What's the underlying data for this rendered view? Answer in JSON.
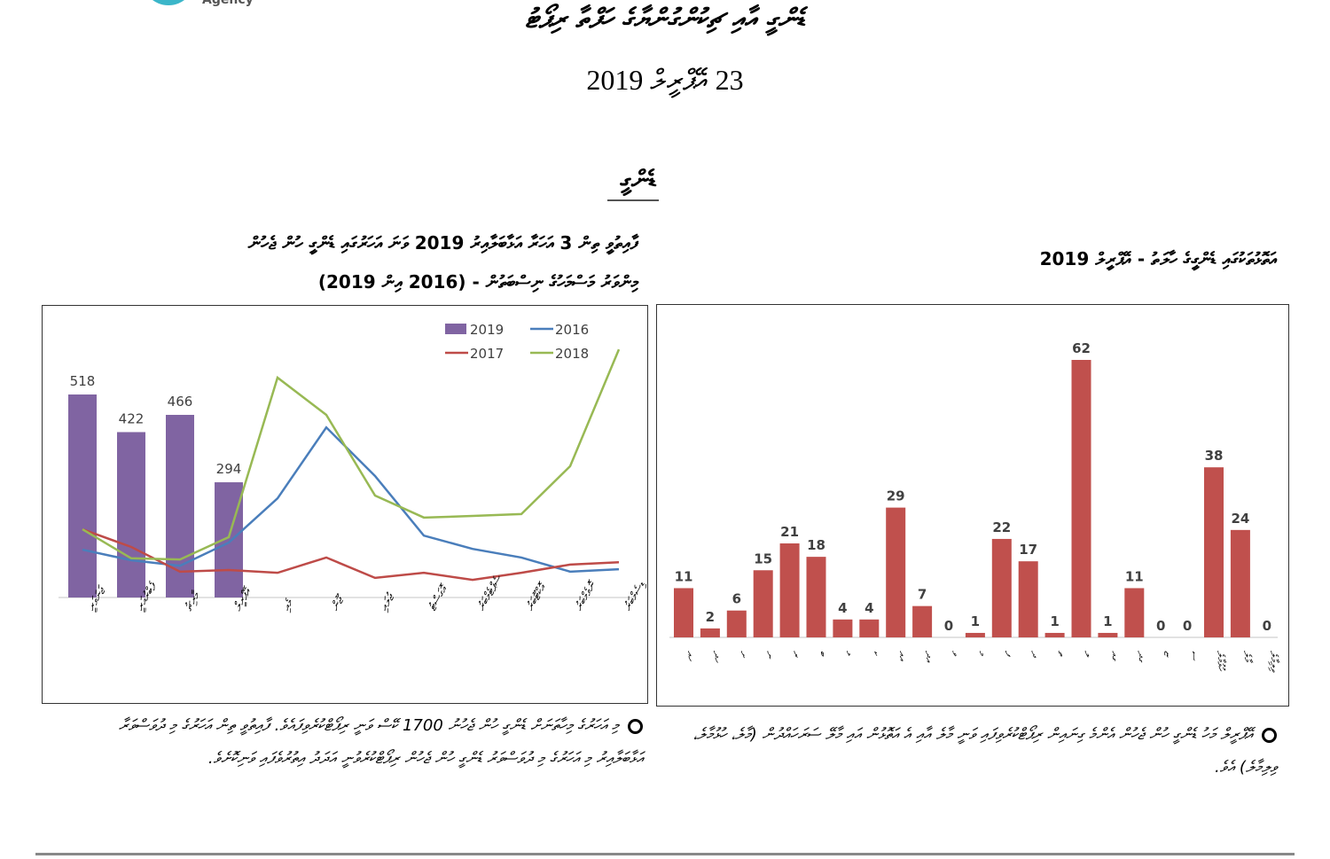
{
  "header": {
    "logo_text": "Agency",
    "title": "ޑެންގީ އާއި ޗިކުންގުންޔާގެ ހަފްތާ ރިޕޯޓު",
    "date": "23 އޭޕްރީލް 2019",
    "section_heading": "ޑެންގީ"
  },
  "chart_data": [
    {
      "type": "bar+line",
      "title_line1": "ފާއިތުވީ ތިން 3 އަހަރާ އަޅާބަލާއިރު 2019 ވަނަ އަހަރުގައި ޑެންގީ ހުން ޖެހުން",
      "title_line2": "މިންވަރު މަސްމަހުގެ ނިސްބަތުން - (2016 އިން 2019)",
      "categories": [
        "ޖަނަވަރީ",
        "ފެބްރުއަރީ",
        "މާރިޗު",
        "އޭޕްރީލް",
        "މެއި",
        "ޖޫން",
        "ޖުލައި",
        "އޮގަސްޓު",
        "ސެޕްޓެމްބަރު",
        "އޮކްޓޫބަރު",
        "ނޮވެމްބަރު",
        "ޑިސެމްބަރު"
      ],
      "ylim": [
        0,
        600
      ],
      "grid": false,
      "legend_position": "top-right",
      "series": [
        {
          "name": "2019",
          "kind": "bar",
          "color": "#8064a2",
          "values": [
            518,
            422,
            466,
            294,
            null,
            null,
            null,
            null,
            null,
            null,
            null,
            null
          ],
          "data_labels": true
        },
        {
          "name": "2016",
          "kind": "line",
          "color": "#4a7ebb",
          "values": [
            122,
            95,
            81,
            140,
            253,
            434,
            310,
            158,
            124,
            102,
            66,
            72
          ]
        },
        {
          "name": "2017",
          "kind": "line",
          "color": "#be4b48",
          "values": [
            174,
            129,
            66,
            70,
            63,
            102,
            50,
            63,
            45,
            63,
            84,
            90
          ]
        },
        {
          "name": "2018",
          "kind": "line",
          "color": "#98b954",
          "values": [
            174,
            100,
            97,
            154,
            561,
            466,
            260,
            204,
            208,
            213,
            335,
            633
          ]
        }
      ]
    },
    {
      "type": "bar",
      "title": "އަތޮޅުތަކުގައި ޑެންގީގެ ހާލަތު - އޭޕްރީލް 2019",
      "categories": [
        "ހއ",
        "ހދ",
        "ށ",
        "ނ",
        "ރ",
        "ބ",
        "ޅ",
        "ކ",
        "އއ",
        "އދ",
        "ވ",
        "މ",
        "ފ",
        "ދ",
        "ތ",
        "ލ",
        "ގއ",
        "ގދ",
        "ޏ",
        "ސ",
        "ހުޅުމާލެ",
        "މާލެ",
        "ވިލިމާލެ"
      ],
      "values": [
        11,
        2,
        6,
        15,
        21,
        18,
        4,
        4,
        29,
        7,
        0,
        1,
        22,
        17,
        1,
        62,
        1,
        11,
        0,
        0,
        38,
        24,
        0
      ],
      "color": "#c0504d",
      "ylim": [
        0,
        65
      ],
      "grid": false,
      "data_labels": true
    }
  ],
  "notes": {
    "left": "މި އަހަރުގެ މިހާތަނަށް ޑެންގީ ހުން ޖެހުނު 1700 ކޭސް ވަނީ ރިޕޯޓްކުރެވިފައެވެ. ފާއިތުވީ ތިން އަހަރުގެ މި ދުވަސްވަރާ އަޅާބަލާއިރު މި އަހަރުގެ މި ދުވަސްވަރު ޑެންގީ ހުން ޖެހުން ރިޕޯޓްކުރެވުނީ އަދަދު އިތުރުވެފައި ވަނިކޮށެވެ.",
    "right": "އޭޕްރީލް މަހު ޑެންގީ ހުން ޖެހުން އެންމެ ގިނައިން ރިޕޯޓްކުރެވިފައި ވަނީ މާލެ އާއި އެ އަތޮޅުން އައި މާލޭ ސަރަހައްދުން (މާލެ، ހުޅުމާލެ، ވިލިމާލެ) އެވެ."
  }
}
